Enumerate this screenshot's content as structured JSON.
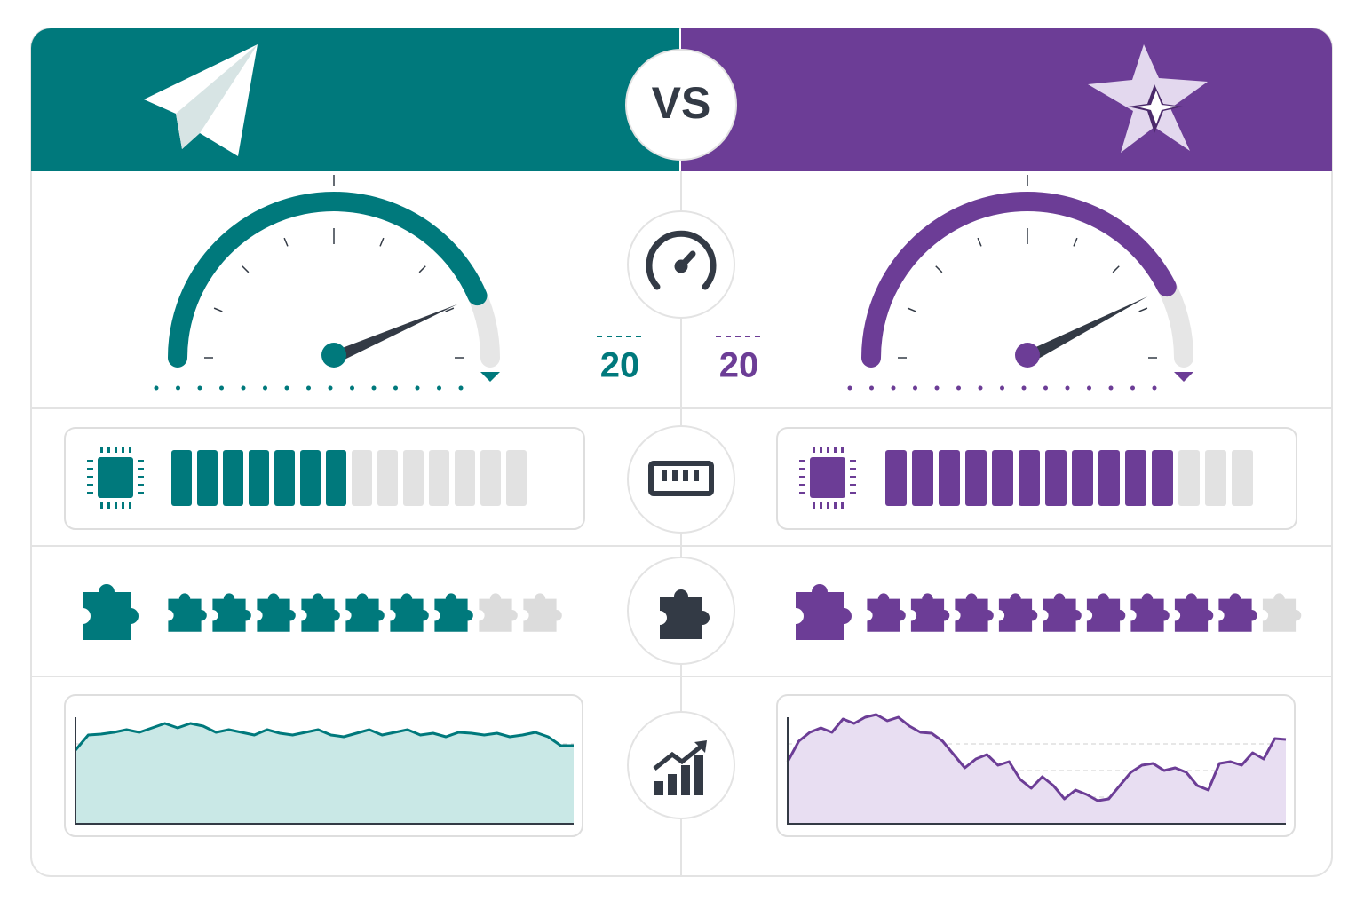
{
  "header": {
    "vs": "VS"
  },
  "panels": [
    {
      "color": "#00797c",
      "light_color": "#c9e8e6",
      "gauge": {
        "value": 87,
        "range": [
          0,
          100
        ],
        "label": "20"
      },
      "bars": {
        "value": 7,
        "total": 14
      },
      "puzzles": {
        "value": 7,
        "total": 9
      },
      "trend": {
        "ylim": [
          0,
          130
        ],
        "yticks": [
          30,
          60,
          90
        ],
        "values": [
          83,
          100,
          101,
          103,
          106,
          103,
          108,
          113,
          108,
          113,
          110,
          103,
          106,
          103,
          100,
          106,
          102,
          100,
          103,
          106,
          100,
          98,
          102,
          106,
          100,
          103,
          106,
          100,
          102,
          98,
          103,
          102,
          100,
          102,
          98,
          100,
          103,
          98,
          88,
          88
        ]
      }
    },
    {
      "color": "#6c3d96",
      "light_color": "#e8def2",
      "gauge": {
        "value": 85,
        "range": [
          0,
          100
        ],
        "label": "20"
      },
      "bars": {
        "value": 11,
        "total": 14
      },
      "puzzles": {
        "value": 9,
        "total": 10
      },
      "trend": {
        "ylim": [
          0,
          130
        ],
        "yticks": [
          30,
          60,
          90
        ],
        "values": [
          70,
          93,
          103,
          108,
          103,
          118,
          113,
          120,
          123,
          116,
          120,
          110,
          103,
          102,
          93,
          78,
          63,
          73,
          78,
          66,
          70,
          50,
          40,
          53,
          43,
          28,
          38,
          33,
          26,
          28,
          43,
          58,
          66,
          68,
          60,
          63,
          58,
          43,
          38,
          68,
          70,
          66,
          80,
          73,
          96,
          95
        ]
      }
    }
  ]
}
